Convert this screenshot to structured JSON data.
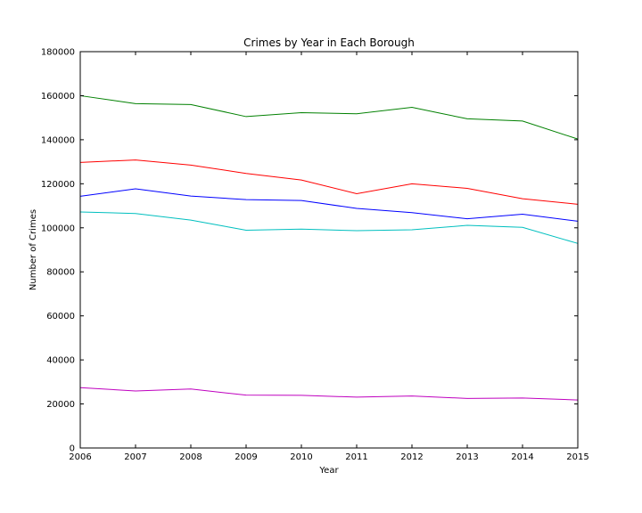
{
  "chart_data": {
    "type": "line",
    "title": "Crimes by Year in Each Borough",
    "xlabel": "Year",
    "ylabel": "Number of Crimes",
    "x": [
      2006,
      2007,
      2008,
      2009,
      2010,
      2011,
      2012,
      2013,
      2014,
      2015
    ],
    "xlim": [
      2006,
      2015
    ],
    "ylim": [
      0,
      180000
    ],
    "xticks": [
      "2006",
      "2007",
      "2008",
      "2009",
      "2010",
      "2011",
      "2012",
      "2013",
      "2014",
      "2015"
    ],
    "yticks": [
      0,
      20000,
      40000,
      60000,
      80000,
      100000,
      120000,
      140000,
      160000,
      180000
    ],
    "grid": false,
    "legend": "none",
    "series": [
      {
        "color": "#008000",
        "values": [
          160000,
          156400,
          156000,
          150500,
          152300,
          151800,
          154700,
          149500,
          148500,
          140300
        ]
      },
      {
        "color": "#ff0000",
        "values": [
          129700,
          130800,
          128500,
          124700,
          121700,
          115500,
          120000,
          117900,
          113200,
          110700
        ]
      },
      {
        "color": "#0000ff",
        "values": [
          114300,
          117700,
          114400,
          112800,
          112400,
          108800,
          106900,
          104100,
          106200,
          103000
        ]
      },
      {
        "color": "#00bfbf",
        "values": [
          107200,
          106500,
          103500,
          98900,
          99400,
          98700,
          99100,
          101100,
          100200,
          92900
        ]
      },
      {
        "color": "#bf00bf",
        "values": [
          27400,
          25900,
          26800,
          24000,
          23900,
          23100,
          23600,
          22500,
          22700,
          21800
        ]
      }
    ]
  }
}
